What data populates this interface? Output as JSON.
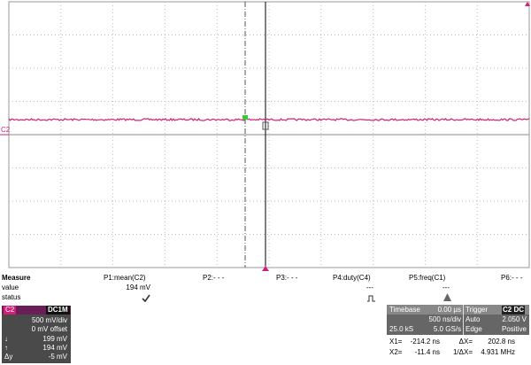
{
  "screen": {
    "channel_marker": "C2",
    "measure": {
      "header": [
        "Measure",
        "P1:mean(C2)",
        "P2:- - -",
        "P3:- - -",
        "P4:duty(C4)",
        "P5:freq(C1)",
        "P6:- - -"
      ],
      "value_row": {
        "label": "value",
        "p1": "194 mV",
        "p4": "---",
        "p5": "---"
      },
      "status_row": {
        "label": "status"
      }
    },
    "channel_box": {
      "name": "C2",
      "coupling": "DC1M",
      "scale": "500 mV/div",
      "offset": "0 mV offset",
      "cursor1": "199 mV",
      "cursor2": "194 mV",
      "delta_label": "Δy",
      "delta": "-5 mV"
    },
    "timebase_box": {
      "timebase_label": "Timebase",
      "timebase_delay": "0.00 µs",
      "trigger_label": "Trigger",
      "trigger_source": "C2 DC",
      "time_div": "500 ns/div",
      "trigger_mode": "Auto",
      "trigger_level": "2.050 V",
      "samples": "25.0 kS",
      "sample_rate": "5.0 GS/s",
      "trigger_type": "Edge",
      "trigger_slope": "Positive"
    },
    "cursors": {
      "x1_label": "X1=",
      "x1": "-214.2 ns",
      "dx_label": "ΔX=",
      "dx": "202.8 ns",
      "x2_label": "X2=",
      "x2": "-11.4 ns",
      "inv_dx_label": "1/ΔX=",
      "inv_dx": "4.931 MHz"
    }
  }
}
